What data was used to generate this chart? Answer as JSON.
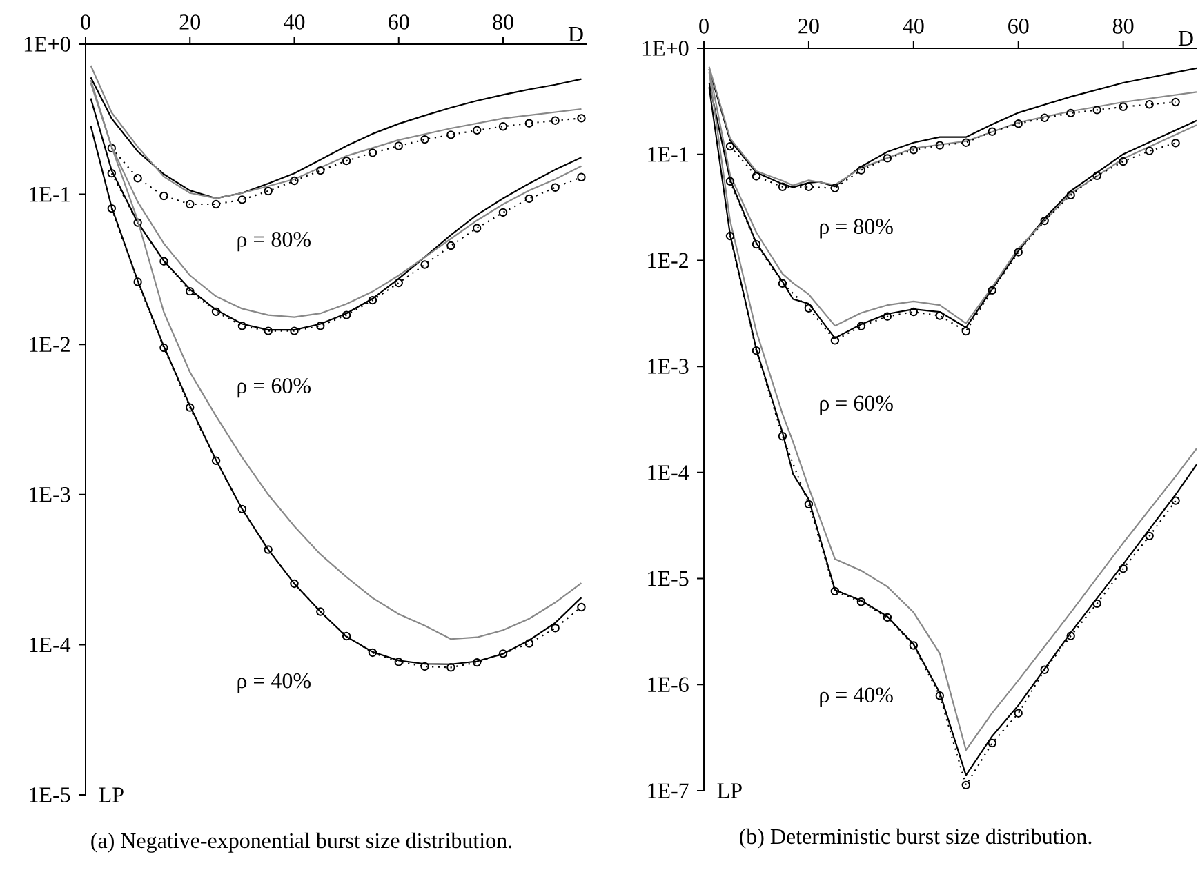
{
  "chart_data": [
    {
      "type": "line",
      "title": "(a) Negative-exponential burst size distribution.",
      "xlabel": "D",
      "log": "y",
      "xlim": [
        0,
        96
      ],
      "ylim": [
        1e-05,
        1
      ],
      "xticks": [
        0,
        20,
        40,
        60,
        80
      ],
      "yticks": [
        {
          "value": 1,
          "label": "1E+0"
        },
        {
          "value": 0.1,
          "label": "1E-1"
        },
        {
          "value": 0.01,
          "label": "1E-2"
        },
        {
          "value": 0.001,
          "label": "1E-3"
        },
        {
          "value": 0.0001,
          "label": "1E-4"
        },
        {
          "value": 1e-05,
          "label": "1E-5"
        }
      ],
      "series": [
        {
          "color": "#000000",
          "line_style": "solid",
          "marker": "none",
          "x": [
            1,
            5,
            10,
            15,
            20,
            25,
            30,
            35,
            40,
            45,
            50,
            55,
            60,
            65,
            70,
            75,
            80,
            85,
            90,
            95
          ],
          "values": [
            0.6,
            0.32,
            0.193,
            0.136,
            0.106,
            0.094,
            0.102,
            0.118,
            0.138,
            0.17,
            0.21,
            0.253,
            0.295,
            0.335,
            0.378,
            0.42,
            0.46,
            0.5,
            0.537,
            0.585
          ]
        },
        {
          "color": "#888888",
          "line_style": "solid",
          "marker": "none",
          "x": [
            1,
            5,
            10,
            15,
            20,
            25,
            30,
            40,
            50,
            60,
            70,
            80,
            95
          ],
          "values": [
            0.72,
            0.35,
            0.207,
            0.131,
            0.102,
            0.094,
            0.102,
            0.126,
            0.18,
            0.23,
            0.275,
            0.32,
            0.37
          ]
        },
        {
          "color": "#000000",
          "line_style": "dotted",
          "marker": "circle",
          "x": [
            5,
            10,
            15,
            20,
            25,
            30,
            35,
            40,
            45,
            50,
            55,
            60,
            65,
            70,
            75,
            80,
            85,
            90,
            95
          ],
          "values": [
            0.203,
            0.128,
            0.0975,
            0.0859,
            0.0859,
            0.0921,
            0.105,
            0.123,
            0.144,
            0.167,
            0.189,
            0.21,
            0.232,
            0.249,
            0.267,
            0.283,
            0.297,
            0.31,
            0.321
          ]
        },
        {
          "color": "#000000",
          "line_style": "solid",
          "marker": "none",
          "x": [
            1,
            5,
            10,
            15,
            20,
            25,
            30,
            35,
            40,
            45,
            50,
            55,
            60,
            65,
            70,
            75,
            80,
            85,
            90,
            95
          ],
          "values": [
            0.435,
            0.144,
            0.0648,
            0.036,
            0.0233,
            0.017,
            0.0137,
            0.0125,
            0.0125,
            0.0137,
            0.0161,
            0.0202,
            0.0274,
            0.0382,
            0.0535,
            0.073,
            0.094,
            0.118,
            0.146,
            0.176
          ]
        },
        {
          "color": "#888888",
          "line_style": "solid",
          "marker": "none",
          "x": [
            1,
            5,
            10,
            15,
            20,
            25,
            30,
            35,
            40,
            45,
            50,
            55,
            60,
            65,
            70,
            75,
            80,
            85,
            90,
            95
          ],
          "values": [
            0.577,
            0.207,
            0.089,
            0.047,
            0.0288,
            0.0209,
            0.0173,
            0.0157,
            0.0152,
            0.0161,
            0.0186,
            0.0225,
            0.0288,
            0.0382,
            0.0506,
            0.067,
            0.0859,
            0.106,
            0.126,
            0.154
          ]
        },
        {
          "color": "#000000",
          "line_style": "dotted",
          "marker": "circle",
          "x": [
            5,
            10,
            15,
            20,
            25,
            30,
            35,
            40,
            45,
            50,
            55,
            60,
            65,
            70,
            75,
            80,
            85,
            90,
            95
          ],
          "values": [
            0.138,
            0.0648,
            0.0358,
            0.0226,
            0.0165,
            0.0133,
            0.0123,
            0.0123,
            0.0133,
            0.0157,
            0.0197,
            0.0257,
            0.034,
            0.0455,
            0.0595,
            0.0757,
            0.0935,
            0.111,
            0.13
          ]
        },
        {
          "color": "#000000",
          "line_style": "solid",
          "marker": "none",
          "x": [
            1,
            5,
            10,
            15,
            20,
            25,
            30,
            35,
            40,
            45,
            50,
            55,
            60,
            65,
            70,
            75,
            80,
            85,
            90,
            95
          ],
          "values": [
            0.285,
            0.082,
            0.0265,
            0.0097,
            0.0039,
            0.0017,
            0.0008,
            0.00043,
            0.000255,
            0.000166,
            0.000113,
            8.95e-05,
            7.85e-05,
            7.45e-05,
            7.41e-05,
            7.75e-05,
            8.7e-05,
            0.000107,
            0.00014,
            0.000206
          ]
        },
        {
          "color": "#888888",
          "line_style": "solid",
          "marker": "none",
          "x": [
            1,
            5,
            10,
            15,
            20,
            25,
            30,
            35,
            40,
            45,
            50,
            55,
            60,
            65,
            70,
            75,
            80,
            85,
            90,
            95
          ],
          "values": [
            0.55,
            0.207,
            0.067,
            0.0164,
            0.00654,
            0.00333,
            0.00177,
            0.001,
            0.000615,
            0.0004,
            0.000282,
            0.000205,
            0.00016,
            0.000134,
            0.000109,
            0.000112,
            0.000125,
            0.000149,
            0.000191,
            0.000257
          ]
        },
        {
          "color": "#000000",
          "line_style": "dotted",
          "marker": "circle",
          "x": [
            5,
            10,
            15,
            20,
            25,
            30,
            35,
            40,
            45,
            50,
            55,
            60,
            65,
            70,
            75,
            80,
            85,
            90,
            95
          ],
          "values": [
            0.0805,
            0.0261,
            0.0095,
            0.0038,
            0.00168,
            0.0008,
            0.00043,
            0.000255,
            0.000166,
            0.000114,
            8.85e-05,
            7.68e-05,
            7.16e-05,
            7.06e-05,
            7.62e-05,
            8.72e-05,
            0.000102,
            0.000129,
            0.000178
          ]
        }
      ],
      "annotations": [
        "ρ = 80%",
        "ρ = 60%",
        "ρ = 40%",
        "LP"
      ]
    },
    {
      "type": "line",
      "title": "(b) Deterministic burst size distribution.",
      "xlabel": "D",
      "log": "y",
      "xlim": [
        0,
        94
      ],
      "ylim": [
        1e-07,
        1
      ],
      "xticks": [
        0,
        20,
        40,
        60,
        80
      ],
      "yticks": [
        {
          "value": 1,
          "label": "1E+0"
        },
        {
          "value": 0.1,
          "label": "1E-1"
        },
        {
          "value": 0.01,
          "label": "1E-2"
        },
        {
          "value": 0.001,
          "label": "1E-3"
        },
        {
          "value": 0.0001,
          "label": "1E-4"
        },
        {
          "value": 1e-05,
          "label": "1E-5"
        },
        {
          "value": 1e-06,
          "label": "1E-6"
        },
        {
          "value": 1e-07,
          "label": "1E-7"
        }
      ],
      "series": [
        {
          "color": "#000000",
          "line_style": "solid",
          "marker": "none",
          "x": [
            1,
            5,
            10,
            15,
            17,
            20,
            22,
            25,
            30,
            35,
            40,
            45,
            50,
            55,
            60,
            70,
            80,
            94
          ],
          "values": [
            0.638,
            0.136,
            0.0674,
            0.0525,
            0.049,
            0.054,
            0.055,
            0.0499,
            0.0767,
            0.1057,
            0.129,
            0.1455,
            0.1455,
            0.192,
            0.247,
            0.35,
            0.473,
            0.65
          ]
        },
        {
          "color": "#888888",
          "line_style": "solid",
          "marker": "none",
          "x": [
            1,
            5,
            10,
            15,
            17,
            20,
            25,
            30,
            40,
            50,
            60,
            70,
            80,
            94
          ],
          "values": [
            0.67,
            0.142,
            0.0695,
            0.0563,
            0.051,
            0.0569,
            0.0515,
            0.0745,
            0.1144,
            0.133,
            0.2,
            0.255,
            0.311,
            0.387
          ]
        },
        {
          "color": "#000000",
          "line_style": "dotted",
          "marker": "circle",
          "x": [
            5,
            10,
            15,
            20,
            25,
            30,
            35,
            40,
            45,
            50,
            55,
            60,
            65,
            70,
            75,
            80,
            85,
            90
          ],
          "values": [
            0.119,
            0.0622,
            0.0494,
            0.0494,
            0.048,
            0.0709,
            0.0919,
            0.11,
            0.1216,
            0.129,
            0.164,
            0.1945,
            0.221,
            0.245,
            0.262,
            0.281,
            0.296,
            0.311
          ]
        },
        {
          "color": "#000000",
          "line_style": "solid",
          "marker": "none",
          "x": [
            1,
            5,
            10,
            15,
            17,
            20,
            25,
            30,
            35,
            40,
            45,
            50,
            55,
            60,
            65,
            70,
            80,
            94
          ],
          "values": [
            0.473,
            0.0578,
            0.0146,
            0.0063,
            0.00432,
            0.00391,
            0.00185,
            0.0025,
            0.00313,
            0.00347,
            0.00327,
            0.00233,
            0.00538,
            0.01233,
            0.0249,
            0.0452,
            0.1005,
            0.208
          ]
        },
        {
          "color": "#888888",
          "line_style": "solid",
          "marker": "none",
          "x": [
            1,
            5,
            10,
            15,
            17,
            20,
            25,
            30,
            35,
            40,
            45,
            50,
            55,
            60,
            70,
            80,
            94
          ],
          "values": [
            0.638,
            0.0641,
            0.0184,
            0.00748,
            0.00613,
            0.00478,
            0.00242,
            0.0032,
            0.00379,
            0.00411,
            0.00379,
            0.00255,
            0.0056,
            0.013,
            0.043,
            0.091,
            0.189
          ]
        },
        {
          "color": "#000000",
          "line_style": "dotted",
          "marker": "circle",
          "x": [
            5,
            10,
            15,
            20,
            25,
            30,
            35,
            40,
            45,
            50,
            55,
            60,
            65,
            70,
            75,
            80,
            85,
            90
          ],
          "values": [
            0.0557,
            0.01419,
            0.00607,
            0.00354,
            0.00176,
            0.0024,
            0.00296,
            0.00327,
            0.00301,
            0.00215,
            0.00522,
            0.01197,
            0.0236,
            0.0413,
            0.0628,
            0.0857,
            0.1078,
            0.1277
          ]
        },
        {
          "color": "#000000",
          "line_style": "solid",
          "marker": "none",
          "x": [
            1,
            5,
            10,
            15,
            17,
            20,
            25,
            30,
            35,
            40,
            45,
            50,
            55,
            60,
            70,
            80,
            90,
            94
          ],
          "values": [
            0.43,
            0.0175,
            0.00145,
            0.000238,
            9.7e-05,
            5.6e-05,
            7.83e-06,
            6.2e-06,
            4.4e-06,
            2.4e-06,
            8.4e-07,
            1.4e-07,
            3.27e-07,
            6.4e-07,
            3.1e-06,
            1.37e-05,
            6.2e-05,
            0.000119
          ]
        },
        {
          "color": "#888888",
          "line_style": "solid",
          "marker": "none",
          "x": [
            1,
            5,
            10,
            15,
            17,
            20,
            25,
            30,
            35,
            40,
            45,
            50,
            55,
            60,
            70,
            80,
            90,
            94
          ],
          "values": [
            0.6,
            0.0236,
            0.00215,
            0.000356,
            0.000195,
            7.2e-05,
            1.53e-05,
            1.19e-05,
            8.4e-06,
            4.8e-06,
            1.97e-06,
            2.42e-07,
            5.4e-07,
            1.1e-06,
            4.8e-06,
            2.17e-05,
            9.2e-05,
            0.000168
          ]
        },
        {
          "color": "#000000",
          "line_style": "dotted",
          "marker": "circle",
          "x": [
            5,
            10,
            15,
            20,
            25,
            30,
            35,
            40,
            45,
            50,
            55,
            60,
            65,
            70,
            75,
            80,
            85,
            90
          ],
          "values": [
            0.017,
            0.00141,
            0.00022,
            5.02e-05,
            7.6e-06,
            6.04e-06,
            4.3e-06,
            2.34e-06,
            7.87e-07,
            1.13e-07,
            2.81e-07,
            5.38e-07,
            1.38e-06,
            2.88e-06,
            5.81e-06,
            1.24e-05,
            2.52e-05,
            5.43e-05
          ]
        }
      ],
      "annotations": [
        "ρ = 80%",
        "ρ = 60%",
        "ρ = 40%",
        "LP"
      ]
    }
  ]
}
